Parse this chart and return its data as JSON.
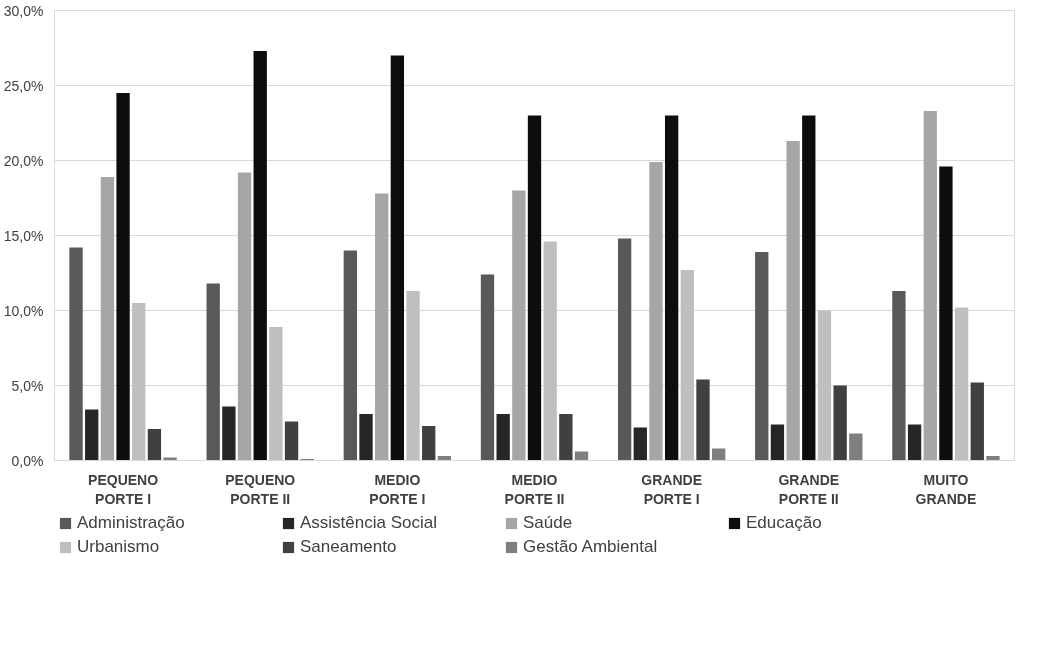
{
  "chart_data": {
    "type": "bar",
    "categories": [
      "PEQUENO\nPORTE I",
      "PEQUENO\nPORTE II",
      "MEDIO\nPORTE I",
      "MEDIO\nPORTE II",
      "GRANDE\nPORTE I",
      "GRANDE\nPORTE II",
      "MUITO\nGRANDE"
    ],
    "series": [
      {
        "name": "Administração",
        "color": "#595959",
        "values": [
          14.2,
          11.8,
          14.0,
          12.4,
          14.8,
          13.9,
          11.3
        ]
      },
      {
        "name": "Assistência Social",
        "color": "#262626",
        "values": [
          3.4,
          3.6,
          3.1,
          3.1,
          2.2,
          2.4,
          2.4
        ]
      },
      {
        "name": "Saúde",
        "color": "#a6a6a6",
        "values": [
          18.9,
          19.2,
          17.8,
          18.0,
          19.9,
          21.3,
          23.3
        ]
      },
      {
        "name": "Educação",
        "color": "#0d0d0d",
        "values": [
          24.5,
          27.3,
          27.0,
          23.0,
          23.0,
          23.0,
          19.6
        ]
      },
      {
        "name": "Urbanismo",
        "color": "#bfbfbf",
        "values": [
          10.5,
          8.9,
          11.3,
          14.6,
          12.7,
          10.0,
          10.2
        ]
      },
      {
        "name": "Saneamento",
        "color": "#404040",
        "values": [
          2.1,
          2.6,
          2.3,
          3.1,
          5.4,
          5.0,
          5.2
        ]
      },
      {
        "name": "Gestão Ambiental",
        "color": "#7f7f7f",
        "values": [
          0.2,
          0.1,
          0.3,
          0.6,
          0.8,
          1.8,
          0.3
        ]
      }
    ],
    "ylim": [
      0,
      30
    ],
    "yticks": [
      {
        "value": 0,
        "label": "0,0%"
      },
      {
        "value": 5,
        "label": "5,0%"
      },
      {
        "value": 10,
        "label": "10,0%"
      },
      {
        "value": 15,
        "label": "15,0%"
      },
      {
        "value": 20,
        "label": "20,0%"
      },
      {
        "value": 25,
        "label": "25,0%"
      },
      {
        "value": 30,
        "label": "30,0%"
      }
    ],
    "grid": "y",
    "legend": "bottom"
  }
}
